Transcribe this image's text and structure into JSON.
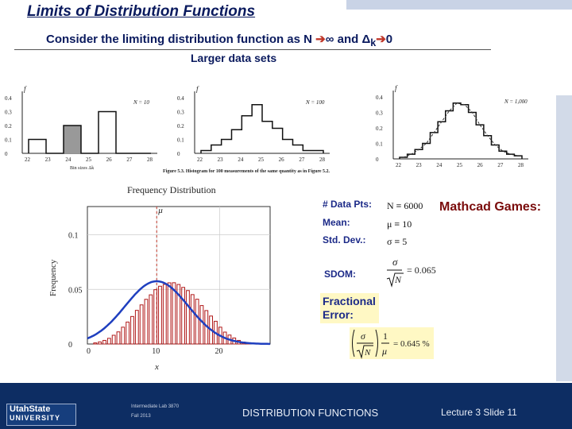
{
  "slide": {
    "title": "Limits of Distribution Functions",
    "subtitle_prefix": "Consider the limiting distribution function as N ",
    "arrow": "➔",
    "subtitle_mid1": "∞ and Δ",
    "subscript_k": "k",
    "subtitle_end": "0",
    "subsubtitle": "Larger data sets"
  },
  "histograms": [
    {
      "y_ticks": [
        "0.4",
        "0.3",
        "0.2",
        "0.1",
        "0"
      ],
      "y_label": "f",
      "x_ticks": [
        "22",
        "23",
        "24",
        "25",
        "26",
        "27",
        "28"
      ],
      "n_label": "N = 10",
      "annotation": "Bin sizes Δk",
      "values": [
        0.1,
        0.0,
        0.2,
        0.0,
        0.3,
        0.0,
        0.0
      ]
    },
    {
      "y_ticks": [
        "0.4",
        "0.3",
        "0.2",
        "0.1",
        "0"
      ],
      "y_label": "f",
      "x_ticks": [
        "22",
        "23",
        "24",
        "25",
        "26",
        "27",
        "28"
      ],
      "n_label": "N = 100",
      "caption": "Figure 5.3. Histogram for 100 measurements of the same quantity as in Figure 5.2.",
      "values": [
        0.02,
        0.06,
        0.1,
        0.17,
        0.27,
        0.35,
        0.23,
        0.18,
        0.1,
        0.06,
        0.02,
        0.02
      ]
    },
    {
      "y_ticks": [
        "0.4",
        "0.3",
        "0.2",
        "0.1",
        "0"
      ],
      "y_label": "f",
      "x_ticks": [
        "22",
        "23",
        "24",
        "25",
        "26",
        "27",
        "28"
      ],
      "n_label": "N = 1,000",
      "values": [
        0.01,
        0.03,
        0.06,
        0.1,
        0.17,
        0.24,
        0.31,
        0.36,
        0.35,
        0.3,
        0.22,
        0.15,
        0.09,
        0.05,
        0.03,
        0.02
      ]
    }
  ],
  "frequency_plot": {
    "title": "Frequency Distribution",
    "mu_label": "μ",
    "y_axis_label": "Frequency",
    "y_ticks": [
      "0.1",
      "0.05",
      "0"
    ],
    "y_tick_values": [
      0.1,
      0.05,
      0
    ],
    "x_ticks": [
      "10",
      "20"
    ],
    "x_tick_values": [
      10,
      20
    ],
    "x_label": "x",
    "ylim": [
      0,
      0.1
    ],
    "xlim": [
      -1,
      28
    ],
    "mean": 10,
    "sd": 5,
    "bar_heights": [
      0.001,
      0.0019,
      0.0033,
      0.0052,
      0.008,
      0.0111,
      0.0154,
      0.0201,
      0.0252,
      0.0308,
      0.0358,
      0.0409,
      0.045,
      0.0497,
      0.0529,
      0.0545,
      0.056,
      0.0561,
      0.0545,
      0.0518,
      0.0489,
      0.0452,
      0.041,
      0.0352,
      0.0306,
      0.0256,
      0.0208,
      0.0154,
      0.0109,
      0.0082,
      0.0055,
      0.0033,
      0.0018,
      0.0011
    ]
  },
  "mathcad": {
    "heading": "Mathcad Games:",
    "rows": [
      {
        "label": "# Data Pts:",
        "value": "N ≡ 6000"
      },
      {
        "label": "Mean:",
        "value": "μ ≡ 10"
      },
      {
        "label": "Std. Dev.:",
        "value": "σ ≡ 5"
      },
      {
        "label": "SDOM:",
        "value": "σ/√N = 0.065"
      }
    ],
    "fractional_error_line1": "Fractional",
    "fractional_error_line2": "Error:",
    "fractional_error_value": "= 0.645 %"
  },
  "footer": {
    "logo_line1": "UtahState",
    "logo_line2": "UNIVERSITY",
    "course_line1": "Intermediate Lab  3870",
    "course_line2": "Fall 2013",
    "topic": "DISTRIBUTION FUNCTIONS",
    "slide_label": "Lecture  3   Slide  11"
  },
  "colors": {
    "title": "#0a1a5e",
    "footer": "#0d2d63",
    "arrow": "#c0392b",
    "mathcad_heading": "#7a0b0b",
    "gauss_curve": "#1f3fbf",
    "bar_outline": "#b01818"
  }
}
